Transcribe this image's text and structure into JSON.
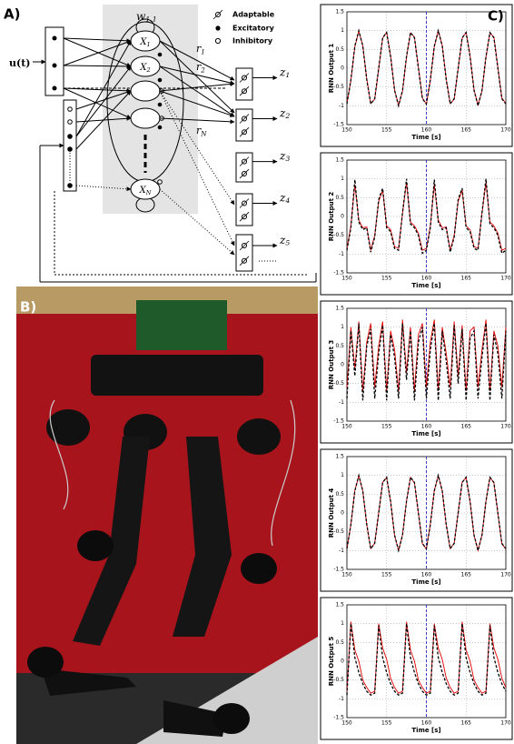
{
  "diagram": {
    "label": "A)",
    "input": "u(t)",
    "weight": {
      "base": "w",
      "sub": "1,1"
    },
    "neurons": [
      {
        "base": "X",
        "sub": "1"
      },
      {
        "base": "X",
        "sub": "2"
      },
      {
        "base": "X",
        "sub": "N"
      }
    ],
    "rates": [
      {
        "base": "r",
        "sub": "1"
      },
      {
        "base": "r",
        "sub": "2"
      },
      {
        "base": "r",
        "sub": "N"
      }
    ],
    "outputs": [
      {
        "base": "z",
        "sub": "1"
      },
      {
        "base": "z",
        "sub": "2"
      },
      {
        "base": "z",
        "sub": "3"
      },
      {
        "base": "z",
        "sub": "4"
      },
      {
        "base": "z",
        "sub": "5"
      }
    ],
    "legend": [
      "Adaptable",
      "Excitatory",
      "Inhibitory"
    ]
  },
  "photo": {
    "label": "B)"
  },
  "charts_label": "C)",
  "chart_data": [
    {
      "type": "line",
      "ylabel": "RNN Output 1",
      "xlabel": "Time [s]",
      "x": [
        150,
        150.5,
        151,
        151.5,
        152,
        152.5,
        153,
        153.5,
        154,
        154.5,
        155,
        155.5,
        156,
        156.5,
        157,
        157.5,
        158,
        158.5,
        159,
        159.5,
        160,
        160.5,
        161,
        161.5,
        162,
        162.5,
        163,
        163.5,
        164,
        164.5,
        165,
        165.5,
        166,
        166.5,
        167,
        167.5,
        168,
        168.5,
        169,
        169.5,
        170
      ],
      "xlim": [
        150,
        170
      ],
      "xticks": [
        150,
        155,
        160,
        165,
        170
      ],
      "ylim": [
        -1.5,
        1.5
      ],
      "yticks": [
        -1.5,
        -1,
        -0.5,
        0,
        0.5,
        1,
        1.5
      ],
      "grid": true,
      "vline": 160,
      "vline_color": "#2a2ad0",
      "series": [
        {
          "color": "#e00000",
          "dash": false,
          "values": [
            -0.93,
            -0.33,
            0.57,
            0.98,
            0.6,
            -0.29,
            -0.94,
            -0.82,
            -0.02,
            0.8,
            0.96,
            0.33,
            -0.57,
            -0.99,
            -0.61,
            0.29,
            0.94,
            0.83,
            0.02,
            -0.79,
            -0.96,
            -0.33,
            0.57,
            0.99,
            0.61,
            -0.29,
            -0.94,
            -0.83,
            -0.02,
            0.79,
            0.96,
            0.33,
            -0.57,
            -0.98,
            -0.61,
            0.29,
            0.94,
            0.83,
            0.02,
            -0.79,
            -0.94
          ]
        },
        {
          "color": "#000000",
          "dash": true,
          "values": [
            -0.95,
            -0.31,
            0.59,
            1,
            0.59,
            -0.31,
            -0.95,
            -0.81,
            0,
            0.81,
            0.95,
            0.31,
            -0.59,
            -1,
            -0.59,
            0.31,
            0.95,
            0.81,
            0,
            -0.81,
            -0.95,
            -0.31,
            0.59,
            1,
            0.59,
            -0.31,
            -0.95,
            -0.81,
            0,
            0.81,
            0.95,
            0.31,
            -0.59,
            -1,
            -0.59,
            0.31,
            0.95,
            0.81,
            0,
            -0.81,
            -0.95
          ]
        }
      ]
    },
    {
      "type": "line",
      "ylabel": "RNN Output 2",
      "xlabel": "Time [s]",
      "x": [
        150,
        150.5,
        151,
        151.5,
        152,
        152.5,
        153,
        153.5,
        154,
        154.5,
        155,
        155.5,
        156,
        156.5,
        157,
        157.5,
        158,
        158.5,
        159,
        159.5,
        160,
        160.5,
        161,
        161.5,
        162,
        162.5,
        163,
        163.5,
        164,
        164.5,
        165,
        165.5,
        166,
        166.5,
        167,
        167.5,
        168,
        168.5,
        169,
        169.5,
        170
      ],
      "xlim": [
        150,
        170
      ],
      "xticks": [
        150,
        155,
        160,
        165,
        170
      ],
      "ylim": [
        -1.5,
        1.5
      ],
      "yticks": [
        -1.5,
        -1,
        -0.5,
        0,
        0.5,
        1,
        1.5
      ],
      "grid": true,
      "vline": 160,
      "vline_color": "#2a2ad0",
      "series": [
        {
          "color": "#e00000",
          "dash": false,
          "values": [
            -0.85,
            -0.25,
            0.85,
            -0.1,
            -0.3,
            -0.28,
            -0.9,
            -0.5,
            0.4,
            0.7,
            -0.25,
            -0.35,
            -0.8,
            -0.85,
            0.08,
            0.9,
            -0.15,
            -0.25,
            -0.45,
            -0.9,
            -0.85,
            -0.25,
            0.85,
            -0.1,
            -0.3,
            -0.28,
            -0.9,
            -0.5,
            0.4,
            0.7,
            -0.25,
            -0.35,
            -0.8,
            -0.85,
            0.08,
            0.9,
            -0.15,
            -0.25,
            -0.45,
            -0.9,
            -0.85
          ]
        },
        {
          "color": "#000000",
          "dash": true,
          "values": [
            -0.9,
            -0.3,
            0.98,
            -0.15,
            -0.35,
            -0.3,
            -0.95,
            -0.55,
            0.45,
            0.75,
            -0.3,
            -0.4,
            -0.85,
            -0.9,
            0.1,
            1,
            -0.2,
            -0.3,
            -0.5,
            -0.98,
            -0.9,
            -0.3,
            0.98,
            -0.15,
            -0.35,
            -0.3,
            -0.95,
            -0.55,
            0.45,
            0.75,
            -0.3,
            -0.4,
            -0.85,
            -0.9,
            0.1,
            1,
            -0.2,
            -0.3,
            -0.5,
            -0.98,
            -0.9
          ]
        }
      ]
    },
    {
      "type": "line",
      "ylabel": "RNN Output 3",
      "xlabel": "Time [s]",
      "x": [
        150,
        150.5,
        151,
        151.5,
        152,
        152.5,
        153,
        153.5,
        154,
        154.5,
        155,
        155.5,
        156,
        156.5,
        157,
        157.5,
        158,
        158.5,
        159,
        159.5,
        160,
        160.5,
        161,
        161.5,
        162,
        162.5,
        163,
        163.5,
        164,
        164.5,
        165,
        165.5,
        166,
        166.5,
        167,
        167.5,
        168,
        168.5,
        169,
        169.5,
        170
      ],
      "xlim": [
        150,
        170
      ],
      "xticks": [
        150,
        155,
        160,
        165,
        170
      ],
      "ylim": [
        -1.5,
        1.5
      ],
      "yticks": [
        -1.5,
        -1,
        -0.5,
        0,
        0.5,
        1,
        1.5
      ],
      "grid": true,
      "vline": 160,
      "vline_color": "#2a2ad0",
      "series": [
        {
          "color": "#e00000",
          "dash": false,
          "values": [
            -0.6,
            1,
            -0.1,
            1.15,
            -0.7,
            0.6,
            1.1,
            -0.6,
            0.5,
            1.15,
            -0.7,
            0.9,
            0.4,
            -0.7,
            1.2,
            -0.2,
            1,
            -0.7,
            0.8,
            1.1,
            -0.6,
            0.6,
            1.2,
            -0.7,
            1,
            0.3,
            -0.6,
            1.15,
            -0.3,
            1.05,
            -0.7,
            0.9,
            1,
            -0.6,
            0.4,
            1.2,
            -0.7,
            0.9,
            0.5,
            -0.6,
            1
          ]
        },
        {
          "color": "#000000",
          "dash": true,
          "values": [
            -0.9,
            0.9,
            -0.3,
            1.1,
            -0.95,
            0.5,
            0.95,
            -0.9,
            0.3,
            1.05,
            -0.95,
            0.8,
            0.2,
            -0.9,
            1.1,
            -0.4,
            0.9,
            -0.95,
            0.6,
            1,
            -0.9,
            0.4,
            1.1,
            -0.95,
            0.9,
            0.1,
            -0.9,
            1.05,
            -0.5,
            0.95,
            -0.95,
            0.7,
            0.9,
            -0.9,
            0.2,
            1.1,
            -0.95,
            0.8,
            0.3,
            -0.9,
            0.9
          ]
        }
      ]
    },
    {
      "type": "line",
      "ylabel": "RNN Output 4",
      "xlabel": "Time [s]",
      "x": [
        150,
        150.5,
        151,
        151.5,
        152,
        152.5,
        153,
        153.5,
        154,
        154.5,
        155,
        155.5,
        156,
        156.5,
        157,
        157.5,
        158,
        158.5,
        159,
        159.5,
        160,
        160.5,
        161,
        161.5,
        162,
        162.5,
        163,
        163.5,
        164,
        164.5,
        165,
        165.5,
        166,
        166.5,
        167,
        167.5,
        168,
        168.5,
        169,
        169.5,
        170
      ],
      "xlim": [
        150,
        170
      ],
      "xticks": [
        150,
        155,
        160,
        165,
        170
      ],
      "ylim": [
        -1.5,
        1.5
      ],
      "yticks": [
        -1.5,
        -1,
        -0.5,
        0,
        0.5,
        1,
        1.5
      ],
      "grid": true,
      "vline": 160,
      "vline_color": "#2a2ad0",
      "series": [
        {
          "color": "#e00000",
          "dash": false,
          "values": [
            -0.96,
            -0.3,
            0.6,
            0.99,
            0.58,
            -0.32,
            -0.95,
            -0.8,
            0.01,
            0.82,
            0.94,
            0.3,
            -0.6,
            -1,
            -0.58,
            0.32,
            0.95,
            0.8,
            -0.01,
            -0.82,
            -0.96,
            -0.3,
            0.6,
            0.99,
            0.58,
            -0.32,
            -0.95,
            -0.8,
            0.01,
            0.82,
            0.94,
            0.3,
            -0.6,
            -1,
            -0.58,
            0.32,
            0.95,
            0.8,
            -0.01,
            -0.82,
            -0.96
          ]
        },
        {
          "color": "#000000",
          "dash": true,
          "values": [
            -0.95,
            -0.31,
            0.59,
            1,
            0.59,
            -0.31,
            -0.95,
            -0.81,
            0,
            0.81,
            0.95,
            0.31,
            -0.59,
            -1,
            -0.59,
            0.31,
            0.95,
            0.81,
            0,
            -0.81,
            -0.95,
            -0.31,
            0.59,
            1,
            0.59,
            -0.31,
            -0.95,
            -0.81,
            0,
            0.81,
            0.95,
            0.31,
            -0.59,
            -1,
            -0.59,
            0.31,
            0.95,
            0.81,
            0,
            -0.81,
            -0.95
          ]
        }
      ]
    },
    {
      "type": "line",
      "ylabel": "RNN Output 5",
      "xlabel": "Time [s]",
      "x": [
        150,
        150.5,
        151,
        151.5,
        152,
        152.5,
        153,
        153.5,
        154,
        154.5,
        155,
        155.5,
        156,
        156.5,
        157,
        157.5,
        158,
        158.5,
        159,
        159.5,
        160,
        160.5,
        161,
        161.5,
        162,
        162.5,
        163,
        163.5,
        164,
        164.5,
        165,
        165.5,
        166,
        166.5,
        167,
        167.5,
        168,
        168.5,
        169,
        169.5,
        170
      ],
      "xlim": [
        150,
        170
      ],
      "xticks": [
        150,
        155,
        160,
        165,
        170
      ],
      "ylim": [
        -1.5,
        1.5
      ],
      "yticks": [
        -1.5,
        -1,
        -0.5,
        0,
        0.5,
        1,
        1.5
      ],
      "grid": true,
      "vline": 160,
      "vline_color": "#2a2ad0",
      "series": [
        {
          "color": "#e00000",
          "dash": false,
          "values": [
            -0.8,
            1.05,
            0.3,
            0,
            -0.5,
            -0.7,
            -0.85,
            -0.8,
            1,
            0.35,
            0.05,
            -0.45,
            -0.7,
            -0.85,
            -0.8,
            1.05,
            0.3,
            0,
            -0.5,
            -0.7,
            -0.85,
            -0.8,
            1,
            0.35,
            0.05,
            -0.45,
            -0.7,
            -0.85,
            -0.8,
            1.05,
            0.3,
            0,
            -0.5,
            -0.7,
            -0.85,
            -0.8,
            1,
            0.35,
            0.05,
            -0.45,
            -0.7
          ]
        },
        {
          "color": "#000000",
          "dash": true,
          "values": [
            -0.9,
            1,
            0.1,
            -0.3,
            -0.6,
            -0.8,
            -0.9,
            -0.85,
            0.95,
            0.1,
            -0.3,
            -0.6,
            -0.8,
            -0.9,
            -0.85,
            1,
            0.1,
            -0.3,
            -0.6,
            -0.8,
            -0.9,
            -0.85,
            0.95,
            0.1,
            -0.3,
            -0.6,
            -0.8,
            -0.9,
            -0.85,
            1,
            0.1,
            -0.3,
            -0.6,
            -0.8,
            -0.9,
            -0.85,
            0.95,
            0.1,
            -0.3,
            -0.6,
            -0.8
          ]
        }
      ]
    }
  ]
}
